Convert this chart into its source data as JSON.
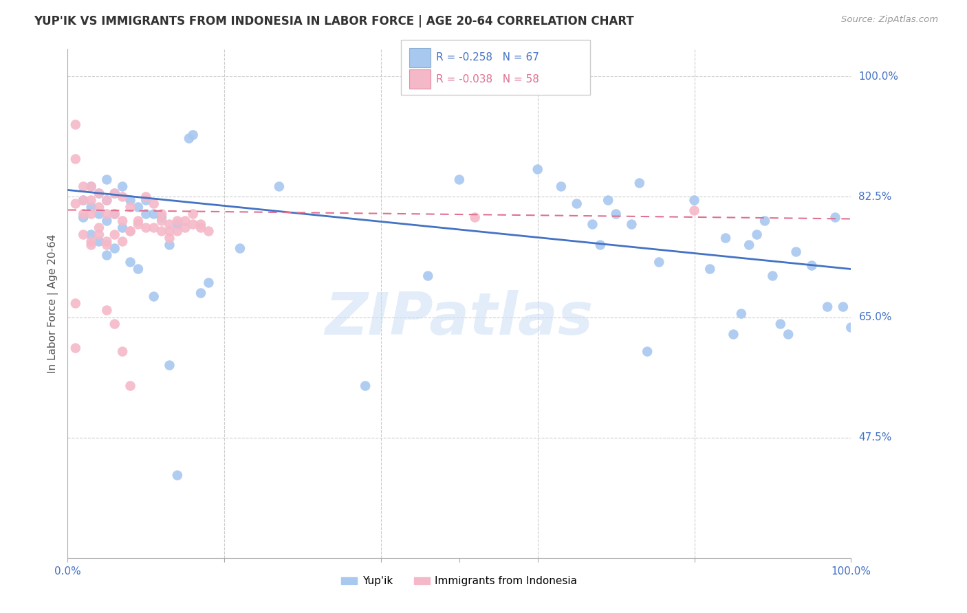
{
  "title": "YUP'IK VS IMMIGRANTS FROM INDONESIA IN LABOR FORCE | AGE 20-64 CORRELATION CHART",
  "source": "Source: ZipAtlas.com",
  "ylabel": "In Labor Force | Age 20-64",
  "xlim": [
    0.0,
    1.0
  ],
  "ylim": [
    0.3,
    1.04
  ],
  "ytick_positions": [
    0.475,
    0.65,
    0.825,
    1.0
  ],
  "ytick_labels": [
    "47.5%",
    "65.0%",
    "82.5%",
    "100.0%"
  ],
  "blue_color": "#a8c8f0",
  "pink_color": "#f5b8c8",
  "trendline_blue": "#4472c4",
  "trendline_pink": "#e07090",
  "watermark": "ZIPatlas",
  "blue_R": -0.258,
  "blue_N": 67,
  "pink_R": -0.038,
  "pink_N": 58,
  "blue_x": [
    0.02,
    0.02,
    0.03,
    0.03,
    0.03,
    0.04,
    0.04,
    0.04,
    0.05,
    0.05,
    0.05,
    0.05,
    0.06,
    0.06,
    0.06,
    0.07,
    0.07,
    0.08,
    0.08,
    0.09,
    0.09,
    0.1,
    0.1,
    0.11,
    0.11,
    0.12,
    0.13,
    0.14,
    0.155,
    0.16,
    0.17,
    0.18,
    0.27,
    0.46,
    0.5,
    0.6,
    0.63,
    0.65,
    0.67,
    0.68,
    0.69,
    0.7,
    0.72,
    0.73,
    0.74,
    0.755,
    0.8,
    0.82,
    0.84,
    0.85,
    0.86,
    0.87,
    0.88,
    0.89,
    0.9,
    0.91,
    0.92,
    0.93,
    0.95,
    0.97,
    0.98,
    0.99,
    1.0,
    0.13,
    0.14,
    0.22,
    0.38
  ],
  "blue_y": [
    0.82,
    0.795,
    0.84,
    0.81,
    0.77,
    0.83,
    0.8,
    0.76,
    0.85,
    0.82,
    0.79,
    0.74,
    0.83,
    0.8,
    0.75,
    0.84,
    0.78,
    0.82,
    0.73,
    0.81,
    0.72,
    0.82,
    0.8,
    0.8,
    0.68,
    0.795,
    0.755,
    0.785,
    0.91,
    0.915,
    0.685,
    0.7,
    0.84,
    0.71,
    0.85,
    0.865,
    0.84,
    0.815,
    0.785,
    0.755,
    0.82,
    0.8,
    0.785,
    0.845,
    0.6,
    0.73,
    0.82,
    0.72,
    0.765,
    0.625,
    0.655,
    0.755,
    0.77,
    0.79,
    0.71,
    0.64,
    0.625,
    0.745,
    0.725,
    0.665,
    0.795,
    0.665,
    0.635,
    0.58,
    0.42,
    0.75,
    0.55
  ],
  "pink_x": [
    0.01,
    0.01,
    0.01,
    0.01,
    0.01,
    0.02,
    0.02,
    0.02,
    0.02,
    0.03,
    0.03,
    0.03,
    0.03,
    0.04,
    0.04,
    0.04,
    0.05,
    0.05,
    0.05,
    0.06,
    0.06,
    0.07,
    0.07,
    0.08,
    0.08,
    0.09,
    0.1,
    0.11,
    0.12,
    0.12,
    0.13,
    0.13,
    0.14,
    0.15,
    0.16,
    0.17,
    0.18,
    0.52,
    0.8,
    0.03,
    0.04,
    0.05,
    0.06,
    0.07,
    0.08,
    0.09,
    0.1,
    0.11,
    0.12,
    0.13,
    0.14,
    0.15,
    0.16,
    0.17,
    0.05,
    0.06,
    0.07,
    0.08
  ],
  "pink_y": [
    0.93,
    0.88,
    0.815,
    0.67,
    0.605,
    0.84,
    0.82,
    0.8,
    0.77,
    0.84,
    0.82,
    0.8,
    0.755,
    0.83,
    0.81,
    0.78,
    0.82,
    0.8,
    0.755,
    0.83,
    0.8,
    0.825,
    0.79,
    0.81,
    0.775,
    0.79,
    0.825,
    0.815,
    0.8,
    0.79,
    0.785,
    0.765,
    0.79,
    0.79,
    0.8,
    0.785,
    0.775,
    0.795,
    0.805,
    0.76,
    0.77,
    0.76,
    0.77,
    0.76,
    0.775,
    0.785,
    0.78,
    0.78,
    0.775,
    0.775,
    0.775,
    0.78,
    0.785,
    0.78,
    0.66,
    0.64,
    0.6,
    0.55
  ]
}
